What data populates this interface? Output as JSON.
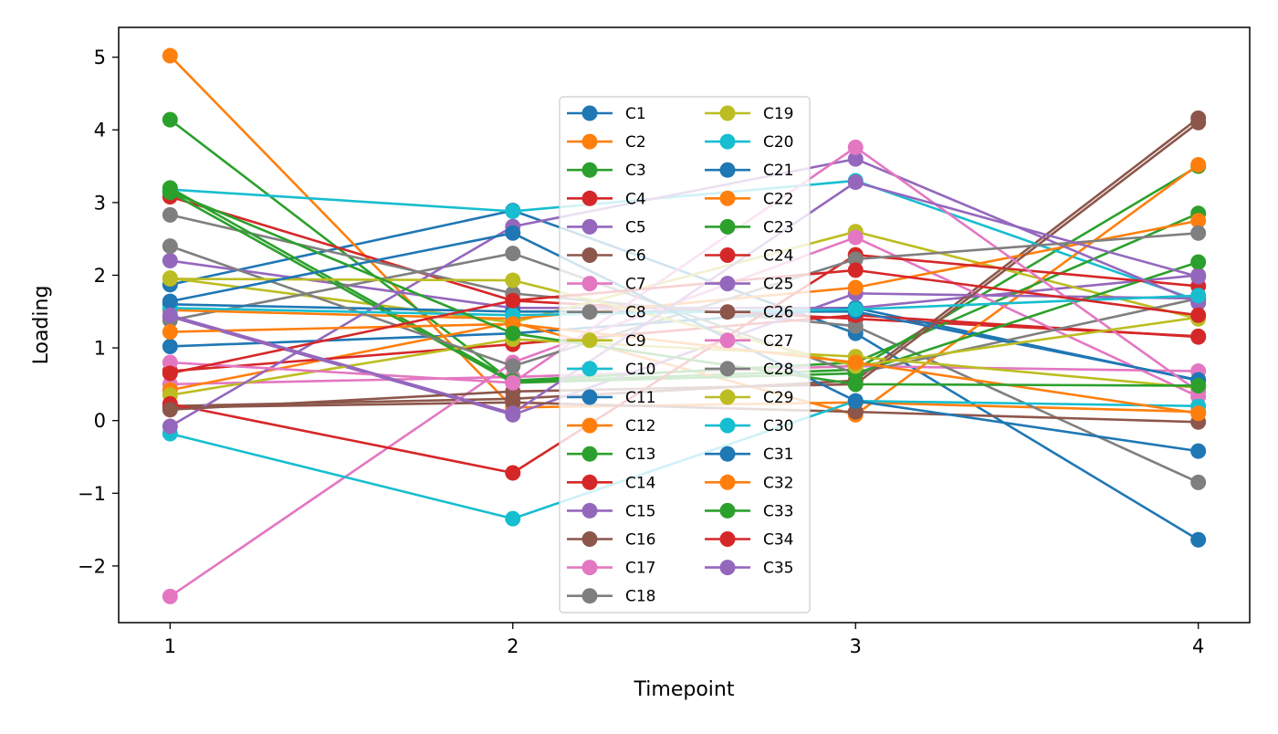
{
  "chart_data": {
    "type": "line",
    "title": "",
    "xlabel": "Timepoint",
    "ylabel": "Loading",
    "x": [
      1,
      2,
      3,
      4
    ],
    "xticks": [
      "1",
      "2",
      "3",
      "4"
    ],
    "yticks": [
      "−2",
      "−1",
      "0",
      "1",
      "2",
      "3",
      "4",
      "5"
    ],
    "ytick_values": [
      -2,
      -1,
      0,
      1,
      2,
      3,
      4,
      5
    ],
    "xlim": [
      0.85,
      4.15
    ],
    "ylim": [
      -2.78,
      5.41
    ],
    "grid": false,
    "legend": {
      "position": "center",
      "columns": 2
    },
    "marker": "circle",
    "series": [
      {
        "name": "C1",
        "color": "#1f77b4",
        "values": [
          1.87,
          2.89,
          1.2,
          -1.64
        ]
      },
      {
        "name": "C2",
        "color": "#ff7f0e",
        "values": [
          5.02,
          0.18,
          0.25,
          0.12
        ]
      },
      {
        "name": "C3",
        "color": "#2ca02c",
        "values": [
          4.14,
          0.53,
          0.7,
          3.5
        ]
      },
      {
        "name": "C4",
        "color": "#d62728",
        "values": [
          3.08,
          1.65,
          1.4,
          1.16
        ]
      },
      {
        "name": "C5",
        "color": "#9467bd",
        "values": [
          2.2,
          1.55,
          1.55,
          2.0
        ]
      },
      {
        "name": "C6",
        "color": "#8c564b",
        "values": [
          0.2,
          0.3,
          0.55,
          4.16
        ]
      },
      {
        "name": "C7",
        "color": "#e377c2",
        "values": [
          0.5,
          0.6,
          0.75,
          0.68
        ]
      },
      {
        "name": "C8",
        "color": "#7f7f7f",
        "values": [
          2.83,
          1.75,
          1.3,
          -0.85
        ]
      },
      {
        "name": "C9",
        "color": "#bcbd22",
        "values": [
          1.96,
          1.35,
          2.6,
          1.4
        ]
      },
      {
        "name": "C10",
        "color": "#17becf",
        "values": [
          3.18,
          2.88,
          3.3,
          1.65
        ]
      },
      {
        "name": "C11",
        "color": "#1f77b4",
        "values": [
          1.02,
          1.2,
          1.55,
          0.55
        ]
      },
      {
        "name": "C12",
        "color": "#ff7f0e",
        "values": [
          0.42,
          1.35,
          0.08,
          3.52
        ]
      },
      {
        "name": "C13",
        "color": "#2ca02c",
        "values": [
          3.2,
          0.55,
          0.8,
          2.85
        ]
      },
      {
        "name": "C14",
        "color": "#d62728",
        "values": [
          0.68,
          1.05,
          1.45,
          1.15
        ]
      },
      {
        "name": "C15",
        "color": "#9467bd",
        "values": [
          1.43,
          0.08,
          1.75,
          1.68
        ]
      },
      {
        "name": "C16",
        "color": "#8c564b",
        "values": [
          0.18,
          0.25,
          0.12,
          -0.02
        ]
      },
      {
        "name": "C17",
        "color": "#e377c2",
        "values": [
          -2.42,
          0.8,
          2.52,
          0.33
        ]
      },
      {
        "name": "C18",
        "color": "#7f7f7f",
        "values": [
          1.38,
          2.3,
          0.65,
          1.68
        ]
      },
      {
        "name": "C19",
        "color": "#bcbd22",
        "values": [
          0.35,
          1.12,
          0.88,
          0.45
        ]
      },
      {
        "name": "C20",
        "color": "#17becf",
        "values": [
          -0.18,
          -1.35,
          0.27,
          0.2
        ]
      },
      {
        "name": "C21",
        "color": "#1f77b4",
        "values": [
          1.6,
          1.5,
          1.5,
          0.56
        ]
      },
      {
        "name": "C22",
        "color": "#ff7f0e",
        "values": [
          1.52,
          1.4,
          1.83,
          2.75
        ]
      },
      {
        "name": "C23",
        "color": "#2ca02c",
        "values": [
          3.14,
          0.52,
          0.65,
          2.18
        ]
      },
      {
        "name": "C24",
        "color": "#d62728",
        "values": [
          0.23,
          -0.72,
          2.28,
          1.85
        ]
      },
      {
        "name": "C25",
        "color": "#9467bd",
        "values": [
          -0.08,
          2.67,
          3.6,
          1.62
        ]
      },
      {
        "name": "C26",
        "color": "#8c564b",
        "values": [
          0.15,
          0.4,
          0.5,
          4.1
        ]
      },
      {
        "name": "C27",
        "color": "#e377c2",
        "values": [
          0.8,
          0.52,
          3.76,
          0.4
        ]
      },
      {
        "name": "C28",
        "color": "#7f7f7f",
        "values": [
          2.4,
          0.75,
          2.22,
          2.58
        ]
      },
      {
        "name": "C29",
        "color": "#bcbd22",
        "values": [
          1.95,
          1.93,
          0.75,
          1.42
        ]
      },
      {
        "name": "C30",
        "color": "#17becf",
        "values": [
          1.55,
          1.45,
          1.53,
          1.72
        ]
      },
      {
        "name": "C31",
        "color": "#1f77b4",
        "values": [
          1.64,
          2.58,
          0.27,
          -0.42
        ]
      },
      {
        "name": "C32",
        "color": "#ff7f0e",
        "values": [
          1.22,
          1.33,
          0.8,
          0.1
        ]
      },
      {
        "name": "C33",
        "color": "#2ca02c",
        "values": [
          3.15,
          1.2,
          0.5,
          0.48
        ]
      },
      {
        "name": "C34",
        "color": "#d62728",
        "values": [
          0.65,
          1.65,
          2.07,
          1.45
        ]
      },
      {
        "name": "C35",
        "color": "#9467bd",
        "values": [
          1.45,
          0.1,
          3.28,
          1.98
        ]
      }
    ]
  }
}
